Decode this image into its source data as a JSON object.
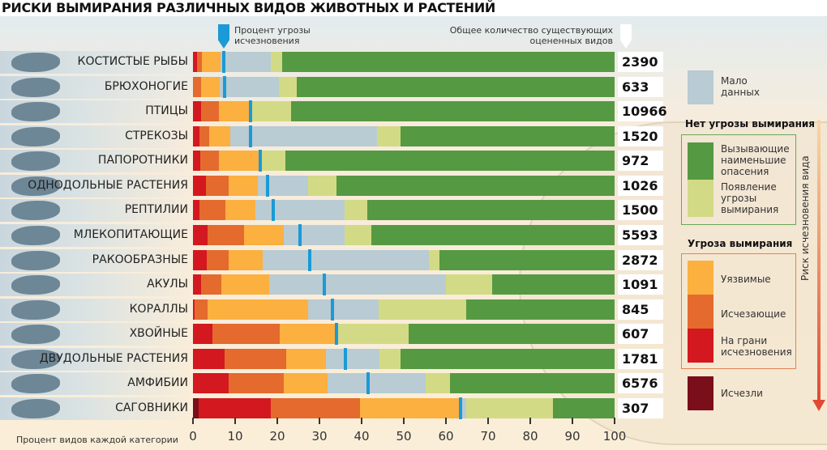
{
  "chart_data": {
    "type": "bar",
    "orientation": "horizontal",
    "stacked": true,
    "title": "РИСКИ ВЫМИРАНИЯ РАЗЛИЧНЫХ ВИДОВ ЖИВОТНЫХ И РАСТЕНИЙ",
    "xlabel": "Процент видов каждой категории",
    "xlim": [
      0,
      100
    ],
    "xticks": [
      "0",
      "10",
      "20",
      "30",
      "40",
      "50",
      "60",
      "70",
      "80",
      "90",
      "100"
    ],
    "marker_label": "Процент угрозы исчезновения",
    "count_label": "Общее количество существующих оцененных видов",
    "risk_axis_label": "Риск исчезновения вида",
    "series": [
      {
        "key": "ex",
        "name": "Исчезли",
        "color": "#7a0e1b"
      },
      {
        "key": "cr",
        "name": "На грани исчезновения",
        "color": "#d3181f"
      },
      {
        "key": "en",
        "name": "Исчезающие",
        "color": "#e46a2e"
      },
      {
        "key": "vu",
        "name": "Уязвимые",
        "color": "#fbb040"
      },
      {
        "key": "dd",
        "name": "Мало данных",
        "color": "#b9cbd3"
      },
      {
        "key": "nt",
        "name": "Появление угрозы вымирания",
        "color": "#d3da85"
      },
      {
        "key": "lc",
        "name": "Вызывающие наименьшие опасения",
        "color": "#569943"
      }
    ],
    "categories": [
      {
        "label": "КОСТИСТЫЕ РЫБЫ",
        "icon": "fish-icon",
        "count": "2390",
        "threat": 7.4,
        "values": [
          0,
          1.0,
          1.1,
          4.5,
          11.9,
          2.6,
          78.9
        ]
      },
      {
        "label": "БРЮХОНОГИЕ",
        "icon": "snail-icon",
        "count": "633",
        "threat": 7.5,
        "values": [
          0,
          0,
          2.0,
          4.4,
          14.0,
          4.2,
          75.4
        ]
      },
      {
        "label": "ПТИЦЫ",
        "icon": "bird-icon",
        "count": "10966",
        "threat": 13.6,
        "values": [
          0,
          1.9,
          4.2,
          7.1,
          0,
          10.1,
          76.7
        ]
      },
      {
        "label": "СТРЕКОЗЫ",
        "icon": "dragonfly-icon",
        "count": "1520",
        "threat": 13.7,
        "values": [
          0,
          1.5,
          2.4,
          5.0,
          34.8,
          5.6,
          50.7
        ]
      },
      {
        "label": "ПАПОРОТНИКИ",
        "icon": "fern-icon",
        "count": "972",
        "threat": 16.0,
        "values": [
          0,
          1.7,
          4.5,
          9.3,
          0,
          6.5,
          78.0
        ]
      },
      {
        "label": "ОДНОДОЛЬНЫЕ РАСТЕНИЯ",
        "icon": "wheat-icon",
        "count": "1026",
        "threat": 17.6,
        "values": [
          0,
          3.1,
          5.3,
          7.0,
          12.0,
          6.7,
          65.9
        ]
      },
      {
        "label": "РЕПТИЛИИ",
        "icon": "crocodile-icon",
        "count": "1500",
        "threat": 19.0,
        "values": [
          0,
          1.6,
          6.1,
          7.1,
          21.2,
          5.4,
          58.6
        ]
      },
      {
        "label": "МЛЕКОПИТАЮЩИЕ",
        "icon": "bear-icon",
        "count": "5593",
        "threat": 25.3,
        "values": [
          0,
          3.4,
          8.7,
          9.4,
          14.5,
          6.3,
          57.7
        ]
      },
      {
        "label": "РАКООБРАЗНЫЕ",
        "icon": "crab-icon",
        "count": "2872",
        "threat": 27.6,
        "values": [
          0,
          3.3,
          5.2,
          8.0,
          39.5,
          2.5,
          41.5
        ]
      },
      {
        "label": "АКУЛЫ",
        "icon": "shark-icon",
        "count": "1091",
        "threat": 31.2,
        "values": [
          0,
          1.9,
          4.9,
          11.2,
          42.0,
          11.0,
          29.0
        ]
      },
      {
        "label": "КОРАЛЛЫ",
        "icon": "coral-icon",
        "count": "845",
        "threat": 33.1,
        "values": [
          0,
          0.4,
          3.0,
          24.0,
          16.6,
          20.8,
          35.2
        ]
      },
      {
        "label": "ХВОЙНЫЕ",
        "icon": "conifer-icon",
        "count": "607",
        "threat": 34.1,
        "values": [
          0,
          4.7,
          15.9,
          13.1,
          0,
          17.4,
          48.9
        ]
      },
      {
        "label": "ДВУДОЛЬНЫЕ РАСТЕНИЯ",
        "icon": "flower-icon",
        "count": "1781",
        "threat": 36.2,
        "values": [
          0,
          7.5,
          14.7,
          9.3,
          12.7,
          5.0,
          50.8
        ]
      },
      {
        "label": "АМФИБИИ",
        "icon": "frog-icon",
        "count": "6576",
        "threat": 41.6,
        "values": [
          0,
          8.4,
          13.1,
          10.4,
          23.2,
          5.9,
          39.0
        ]
      },
      {
        "label": "САГОВНИКИ",
        "icon": "palm-icon",
        "count": "307",
        "threat": 63.4,
        "values": [
          1.3,
          17.2,
          21.2,
          23.3,
          1.8,
          20.6,
          14.6
        ]
      }
    ]
  },
  "legend": {
    "data_deficient": "Мало данных",
    "no_threat_title": "Нет угрозы вымирания",
    "lc": "Вызывающие наименьшие опасения",
    "nt": "Появление угрозы вымирания",
    "threat_title": "Угроза вымирания",
    "vu": "Уязвимые",
    "en": "Исчезающие",
    "cr": "На грани исчезновения",
    "ex": "Исчезли"
  }
}
